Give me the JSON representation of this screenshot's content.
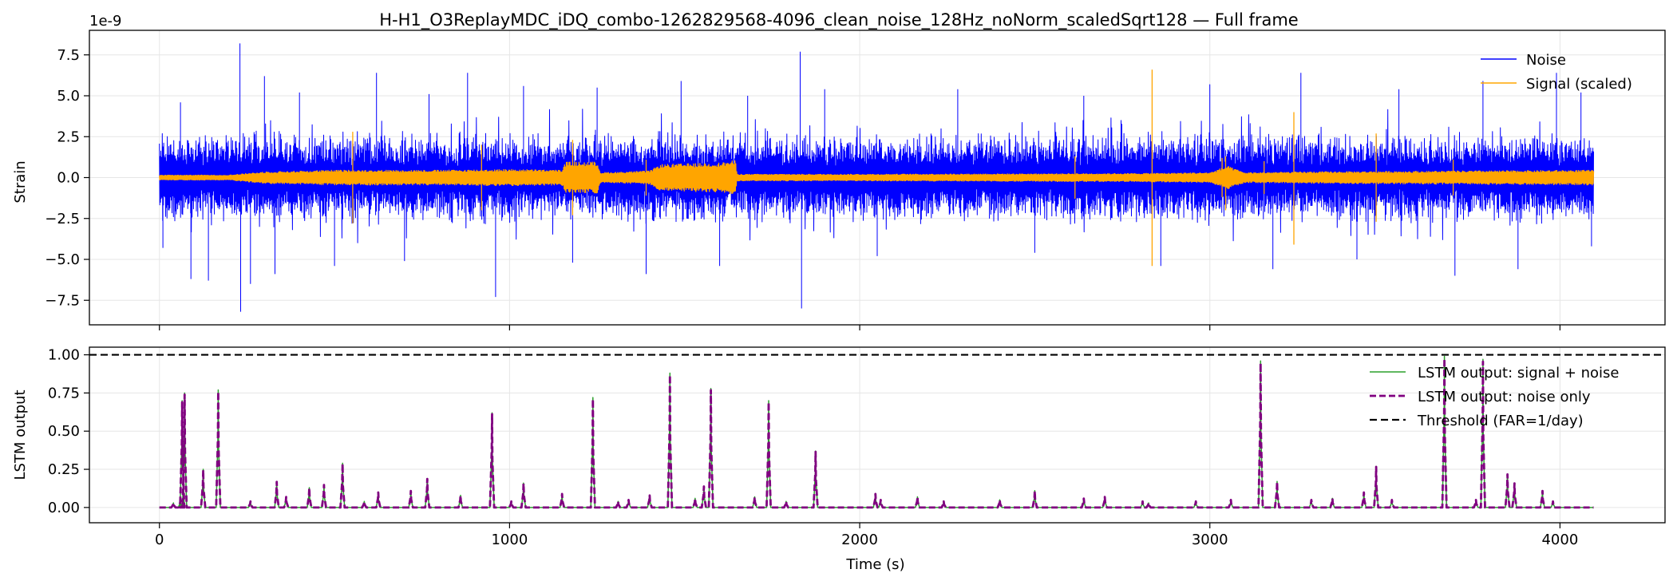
{
  "title": "H-H1_O3ReplayMDC_iDQ_combo-1262829568-4096_clean_noise_128Hz_noNorm_scaledSqrt128 — Full frame",
  "chart_data": [
    {
      "type": "line",
      "panel": "top",
      "ylabel": "Strain",
      "offset_text": "1e-9",
      "xlim": [
        -200,
        4300
      ],
      "ylim": [
        -9.0,
        9.0
      ],
      "yticks": [
        -7.5,
        -5.0,
        -2.5,
        0.0,
        2.5,
        5.0,
        7.5
      ],
      "ytick_labels": [
        "−7.5",
        "−5.0",
        "−2.5",
        "0.0",
        "2.5",
        "5.0",
        "7.5"
      ],
      "grid": true,
      "legend": "top-right",
      "series": [
        {
          "name": "Noise",
          "color": "#0000ff",
          "base_amp": 2.3,
          "spikes": [
            [
              10,
              -4.3
            ],
            [
              60,
              4.6
            ],
            [
              90,
              -6.2
            ],
            [
              140,
              -6.3
            ],
            [
              230,
              8.2
            ],
            [
              232,
              -8.2
            ],
            [
              260,
              -6.5
            ],
            [
              300,
              6.2
            ],
            [
              330,
              -5.9
            ],
            [
              400,
              5.2
            ],
            [
              500,
              -5.4
            ],
            [
              620,
              6.4
            ],
            [
              700,
              -5.1
            ],
            [
              770,
              5.1
            ],
            [
              880,
              6.4
            ],
            [
              960,
              -7.3
            ],
            [
              1040,
              5.6
            ],
            [
              1180,
              -5.2
            ],
            [
              1250,
              5.5
            ],
            [
              1390,
              -5.9
            ],
            [
              1490,
              5.9
            ],
            [
              1600,
              -5.4
            ],
            [
              1680,
              5.0
            ],
            [
              1830,
              7.7
            ],
            [
              1834,
              -8.0
            ],
            [
              1900,
              5.4
            ],
            [
              2050,
              -4.8
            ],
            [
              2280,
              5.4
            ],
            [
              2500,
              -4.6
            ],
            [
              2640,
              5.0
            ],
            [
              2860,
              -5.4
            ],
            [
              3000,
              5.7
            ],
            [
              3180,
              -5.6
            ],
            [
              3260,
              6.4
            ],
            [
              3420,
              -5.0
            ],
            [
              3540,
              5.4
            ],
            [
              3700,
              -6.0
            ],
            [
              3780,
              5.9
            ],
            [
              3880,
              -5.6
            ],
            [
              3990,
              6.4
            ],
            [
              4060,
              5.2
            ],
            [
              4090,
              -4.2
            ]
          ]
        },
        {
          "name": "Signal (scaled)",
          "color": "#ffa500",
          "envelope": [
            [
              0,
              0.15
            ],
            [
              200,
              0.15
            ],
            [
              300,
              0.35
            ],
            [
              500,
              0.45
            ],
            [
              800,
              0.45
            ],
            [
              1000,
              0.5
            ],
            [
              1150,
              0.45
            ],
            [
              1160,
              0.95
            ],
            [
              1250,
              0.95
            ],
            [
              1260,
              0.3
            ],
            [
              1400,
              0.4
            ],
            [
              1430,
              0.8
            ],
            [
              1600,
              0.9
            ],
            [
              1645,
              1.05
            ],
            [
              1650,
              0.2
            ],
            [
              2000,
              0.2
            ],
            [
              2800,
              0.25
            ],
            [
              3000,
              0.3
            ],
            [
              3050,
              0.7
            ],
            [
              3100,
              0.3
            ],
            [
              3300,
              0.35
            ],
            [
              4100,
              0.45
            ]
          ],
          "spikes": [
            [
              552,
              2.8,
              -2.8
            ],
            [
              920,
              2.0,
              -2.0
            ],
            [
              1180,
              2.3,
              -2.3
            ],
            [
              1390,
              1.1,
              -1.1
            ],
            [
              2615,
              1.3,
              -1.3
            ],
            [
              2835,
              6.6,
              -5.4
            ],
            [
              3035,
              1.2,
              -1.2
            ],
            [
              3045,
              1.3,
              -2.0
            ],
            [
              3155,
              1.0,
              -1.0
            ],
            [
              3240,
              4.0,
              -4.1
            ],
            [
              3475,
              2.7,
              -2.7
            ],
            [
              3695,
              1.1,
              -1.1
            ]
          ]
        }
      ]
    },
    {
      "type": "line",
      "panel": "bottom",
      "xlabel": "Time (s)",
      "ylabel": "LSTM output",
      "xlim": [
        -200,
        4300
      ],
      "ylim": [
        -0.1,
        1.05
      ],
      "xticks": [
        0,
        1000,
        2000,
        3000,
        4000
      ],
      "xtick_labels": [
        "0",
        "1000",
        "2000",
        "3000",
        "4000"
      ],
      "yticks": [
        0.0,
        0.25,
        0.5,
        0.75,
        1.0
      ],
      "ytick_labels": [
        "0.00",
        "0.25",
        "0.50",
        "0.75",
        "1.00"
      ],
      "grid": true,
      "legend": "top-right",
      "peaks": [
        [
          40,
          0.03
        ],
        [
          60,
          0.05
        ],
        [
          65,
          0.7
        ],
        [
          72,
          0.75
        ],
        [
          125,
          0.25
        ],
        [
          168,
          0.77
        ],
        [
          260,
          0.04
        ],
        [
          335,
          0.17
        ],
        [
          362,
          0.07
        ],
        [
          428,
          0.13
        ],
        [
          470,
          0.15
        ],
        [
          523,
          0.29
        ],
        [
          585,
          0.04
        ],
        [
          625,
          0.1
        ],
        [
          718,
          0.11
        ],
        [
          765,
          0.19
        ],
        [
          860,
          0.08
        ],
        [
          950,
          0.62
        ],
        [
          1005,
          0.04
        ],
        [
          1040,
          0.16
        ],
        [
          1150,
          0.09
        ],
        [
          1238,
          0.72
        ],
        [
          1310,
          0.04
        ],
        [
          1340,
          0.05
        ],
        [
          1400,
          0.08
        ],
        [
          1458,
          0.88
        ],
        [
          1530,
          0.06
        ],
        [
          1555,
          0.14
        ],
        [
          1575,
          0.78
        ],
        [
          1700,
          0.07
        ],
        [
          1740,
          0.7
        ],
        [
          1790,
          0.04
        ],
        [
          1874,
          0.37
        ],
        [
          2045,
          0.09
        ],
        [
          2060,
          0.05
        ],
        [
          2165,
          0.07
        ],
        [
          2240,
          0.04
        ],
        [
          2400,
          0.05
        ],
        [
          2500,
          0.11
        ],
        [
          2640,
          0.06
        ],
        [
          2700,
          0.07
        ],
        [
          2808,
          0.04
        ],
        [
          2825,
          0.03
        ],
        [
          2960,
          0.04
        ],
        [
          3060,
          0.05
        ],
        [
          3145,
          0.96
        ],
        [
          3192,
          0.17
        ],
        [
          3290,
          0.05
        ],
        [
          3350,
          0.06
        ],
        [
          3440,
          0.1
        ],
        [
          3475,
          0.27
        ],
        [
          3520,
          0.05
        ],
        [
          3670,
          0.99
        ],
        [
          3760,
          0.05
        ],
        [
          3780,
          0.97
        ],
        [
          3850,
          0.22
        ],
        [
          3870,
          0.16
        ],
        [
          3950,
          0.11
        ],
        [
          3980,
          0.04
        ]
      ],
      "series": [
        {
          "name": "LSTM output: signal + noise",
          "color": "#2ca02c",
          "style": "solid"
        },
        {
          "name": "LSTM output: noise only",
          "color": "#800080",
          "style": "dashed"
        },
        {
          "name": "Threshold (FAR=1/day)",
          "color": "#000000",
          "style": "dashed",
          "value": 1.0
        }
      ]
    }
  ]
}
